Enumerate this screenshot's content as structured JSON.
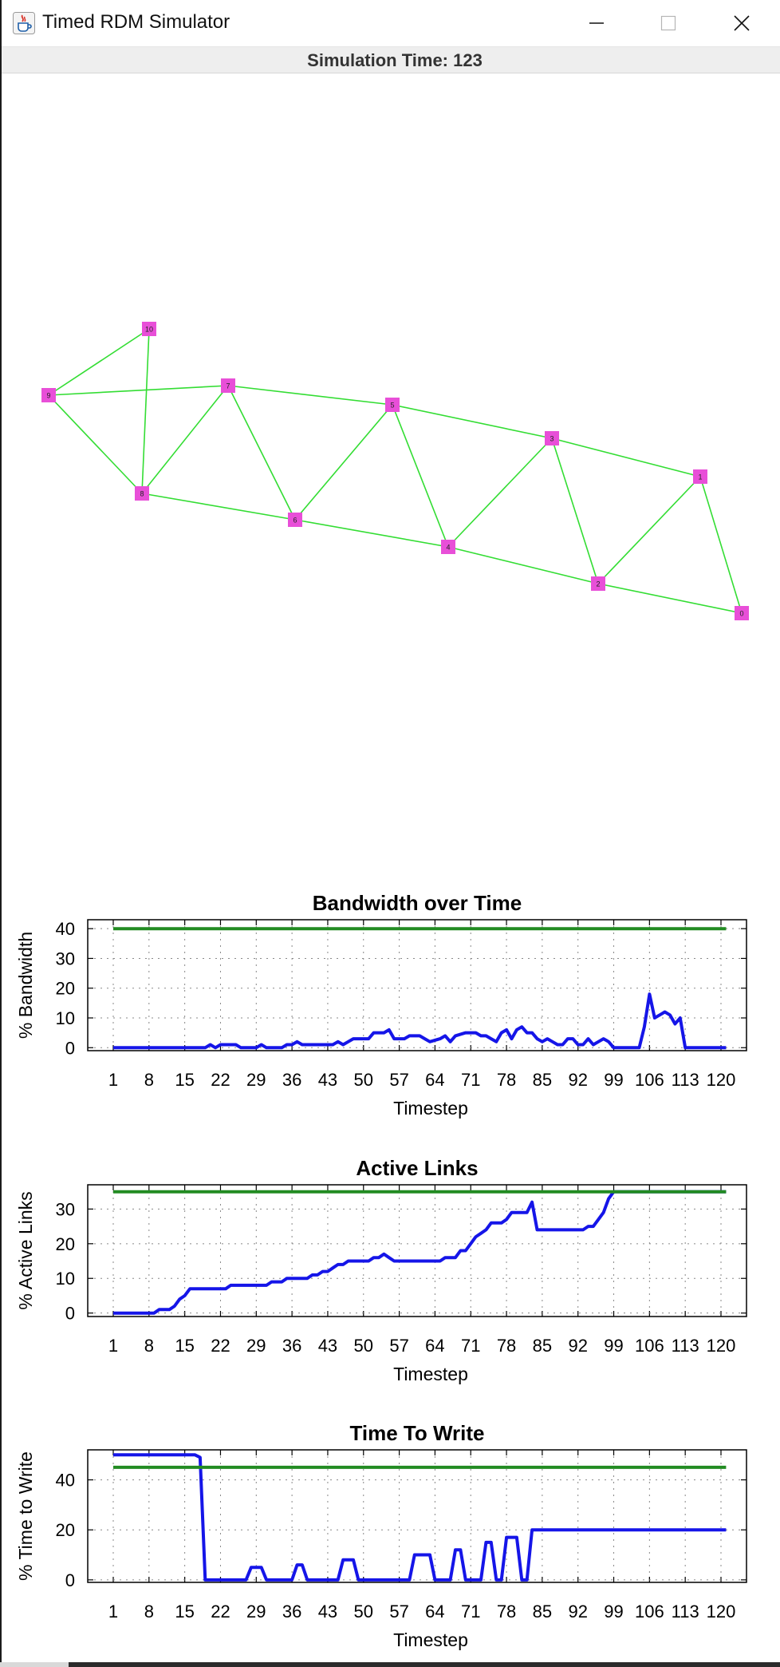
{
  "window": {
    "title": "Timed RDM Simulator",
    "icon": "java-coffee-cup-icon",
    "controls": [
      "minimize-icon",
      "maximize-icon",
      "close-icon"
    ]
  },
  "status": {
    "simulation_time_label": "Simulation Time: 123"
  },
  "topology": {
    "node_color": "#e84fd8",
    "edge_color": "#33dd33",
    "nodes": [
      {
        "id": "0",
        "label": "0"
      },
      {
        "id": "1",
        "label": "1"
      },
      {
        "id": "2",
        "label": "2"
      },
      {
        "id": "3",
        "label": "3"
      },
      {
        "id": "4",
        "label": "4"
      },
      {
        "id": "5",
        "label": "5"
      },
      {
        "id": "6",
        "label": "6"
      },
      {
        "id": "7",
        "label": "7"
      },
      {
        "id": "8",
        "label": "8"
      },
      {
        "id": "9",
        "label": "9"
      },
      {
        "id": "10",
        "label": "10"
      }
    ],
    "edges": [
      [
        "9",
        "10"
      ],
      [
        "9",
        "7"
      ],
      [
        "9",
        "8"
      ],
      [
        "10",
        "8"
      ],
      [
        "8",
        "7"
      ],
      [
        "8",
        "6"
      ],
      [
        "7",
        "6"
      ],
      [
        "7",
        "5"
      ],
      [
        "6",
        "5"
      ],
      [
        "6",
        "4"
      ],
      [
        "5",
        "4"
      ],
      [
        "5",
        "3"
      ],
      [
        "4",
        "3"
      ],
      [
        "4",
        "2"
      ],
      [
        "3",
        "2"
      ],
      [
        "3",
        "1"
      ],
      [
        "2",
        "1"
      ],
      [
        "2",
        "0"
      ],
      [
        "1",
        "0"
      ]
    ]
  },
  "chart_data": [
    {
      "type": "line",
      "title": "Bandwidth over Time",
      "xlabel": "Timestep",
      "ylabel": "% Bandwidth",
      "xticks": [
        "1",
        "8",
        "15",
        "22",
        "29",
        "36",
        "43",
        "50",
        "57",
        "64",
        "71",
        "78",
        "85",
        "92",
        "99",
        "106",
        "113",
        "120"
      ],
      "yticks": [
        "0",
        "10",
        "20",
        "30",
        "40"
      ],
      "xlim": [
        1,
        120
      ],
      "ylim": [
        -1,
        43
      ],
      "grid": true,
      "series": [
        {
          "color": "#1515e8",
          "points": [
            [
              1,
              0
            ],
            [
              19,
              0
            ],
            [
              20,
              1
            ],
            [
              21,
              0
            ],
            [
              22,
              1
            ],
            [
              25,
              1
            ],
            [
              26,
              0
            ],
            [
              29,
              0
            ],
            [
              30,
              1
            ],
            [
              31,
              0
            ],
            [
              34,
              0
            ],
            [
              35,
              1
            ],
            [
              36,
              1
            ],
            [
              37,
              2
            ],
            [
              38,
              1
            ],
            [
              44,
              1
            ],
            [
              45,
              2
            ],
            [
              46,
              1
            ],
            [
              47,
              2
            ],
            [
              48,
              3
            ],
            [
              51,
              3
            ],
            [
              52,
              5
            ],
            [
              54,
              5
            ],
            [
              55,
              6
            ],
            [
              56,
              3
            ],
            [
              58,
              3
            ],
            [
              59,
              4
            ],
            [
              61,
              4
            ],
            [
              62,
              3
            ],
            [
              63,
              2
            ],
            [
              65,
              3
            ],
            [
              66,
              4
            ],
            [
              67,
              2
            ],
            [
              68,
              4
            ],
            [
              70,
              5
            ],
            [
              72,
              5
            ],
            [
              73,
              4
            ],
            [
              74,
              4
            ],
            [
              75,
              3
            ],
            [
              76,
              2
            ],
            [
              77,
              5
            ],
            [
              78,
              6
            ],
            [
              79,
              3
            ],
            [
              80,
              6
            ],
            [
              81,
              7
            ],
            [
              82,
              5
            ],
            [
              83,
              5
            ],
            [
              84,
              3
            ],
            [
              85,
              2
            ],
            [
              86,
              3
            ],
            [
              87,
              2
            ],
            [
              88,
              1
            ],
            [
              89,
              1
            ],
            [
              90,
              3
            ],
            [
              91,
              3
            ],
            [
              92,
              1
            ],
            [
              93,
              1
            ],
            [
              94,
              3
            ],
            [
              95,
              1
            ],
            [
              96,
              2
            ],
            [
              97,
              3
            ],
            [
              98,
              2
            ],
            [
              99,
              0
            ],
            [
              104,
              0
            ],
            [
              105,
              7
            ],
            [
              106,
              18
            ],
            [
              107,
              10
            ],
            [
              108,
              11
            ],
            [
              109,
              12
            ],
            [
              110,
              11
            ],
            [
              111,
              8
            ],
            [
              112,
              10
            ],
            [
              113,
              0
            ],
            [
              121,
              0
            ]
          ]
        },
        {
          "color": "#228b22",
          "points": [
            [
              1,
              40
            ],
            [
              121,
              40
            ]
          ]
        }
      ]
    },
    {
      "type": "line",
      "title": "Active Links",
      "xlabel": "Timestep",
      "ylabel": "% Active Links",
      "xticks": [
        "1",
        "8",
        "15",
        "22",
        "29",
        "36",
        "43",
        "50",
        "57",
        "64",
        "71",
        "78",
        "85",
        "92",
        "99",
        "106",
        "113",
        "120"
      ],
      "yticks": [
        "0",
        "10",
        "20",
        "30"
      ],
      "xlim": [
        1,
        120
      ],
      "ylim": [
        -1,
        37
      ],
      "grid": true,
      "series": [
        {
          "color": "#1515e8",
          "points": [
            [
              1,
              0
            ],
            [
              9,
              0
            ],
            [
              10,
              1
            ],
            [
              12,
              1
            ],
            [
              13,
              2
            ],
            [
              14,
              4
            ],
            [
              15,
              5
            ],
            [
              16,
              7
            ],
            [
              23,
              7
            ],
            [
              24,
              8
            ],
            [
              31,
              8
            ],
            [
              32,
              9
            ],
            [
              34,
              9
            ],
            [
              35,
              10
            ],
            [
              39,
              10
            ],
            [
              40,
              11
            ],
            [
              41,
              11
            ],
            [
              42,
              12
            ],
            [
              43,
              12
            ],
            [
              44,
              13
            ],
            [
              45,
              14
            ],
            [
              46,
              14
            ],
            [
              47,
              15
            ],
            [
              51,
              15
            ],
            [
              52,
              16
            ],
            [
              53,
              16
            ],
            [
              54,
              17
            ],
            [
              55,
              16
            ],
            [
              56,
              15
            ],
            [
              65,
              15
            ],
            [
              66,
              16
            ],
            [
              68,
              16
            ],
            [
              69,
              18
            ],
            [
              70,
              18
            ],
            [
              71,
              20
            ],
            [
              72,
              22
            ],
            [
              73,
              23
            ],
            [
              74,
              24
            ],
            [
              75,
              26
            ],
            [
              77,
              26
            ],
            [
              78,
              27
            ],
            [
              79,
              29
            ],
            [
              82,
              29
            ],
            [
              83,
              32
            ],
            [
              84,
              24
            ],
            [
              93,
              24
            ],
            [
              94,
              25
            ],
            [
              95,
              25
            ],
            [
              96,
              27
            ],
            [
              97,
              29
            ],
            [
              98,
              33
            ],
            [
              99,
              35
            ],
            [
              121,
              35
            ]
          ]
        },
        {
          "color": "#228b22",
          "points": [
            [
              1,
              35
            ],
            [
              121,
              35
            ]
          ]
        }
      ]
    },
    {
      "type": "line",
      "title": "Time To Write",
      "xlabel": "Timestep",
      "ylabel": "% Time to Write",
      "xticks": [
        "1",
        "8",
        "15",
        "22",
        "29",
        "36",
        "43",
        "50",
        "57",
        "64",
        "71",
        "78",
        "85",
        "92",
        "99",
        "106",
        "113",
        "120"
      ],
      "yticks": [
        "0",
        "20",
        "40"
      ],
      "xlim": [
        1,
        120
      ],
      "ylim": [
        -1,
        52
      ],
      "grid": true,
      "series": [
        {
          "color": "#1515e8",
          "points": [
            [
              1,
              50
            ],
            [
              17,
              50
            ],
            [
              18,
              49
            ],
            [
              19,
              0
            ],
            [
              27,
              0
            ],
            [
              28,
              5
            ],
            [
              30,
              5
            ],
            [
              31,
              0
            ],
            [
              36,
              0
            ],
            [
              37,
              6
            ],
            [
              38,
              6
            ],
            [
              39,
              0
            ],
            [
              45,
              0
            ],
            [
              46,
              8
            ],
            [
              48,
              8
            ],
            [
              49,
              0
            ],
            [
              59,
              0
            ],
            [
              60,
              10
            ],
            [
              63,
              10
            ],
            [
              64,
              0
            ],
            [
              67,
              0
            ],
            [
              68,
              12
            ],
            [
              69,
              12
            ],
            [
              70,
              0
            ],
            [
              73,
              0
            ],
            [
              74,
              15
            ],
            [
              75,
              15
            ],
            [
              76,
              0
            ],
            [
              77,
              0
            ],
            [
              78,
              17
            ],
            [
              80,
              17
            ],
            [
              81,
              0
            ],
            [
              82,
              0
            ],
            [
              83,
              20
            ],
            [
              121,
              20
            ]
          ]
        },
        {
          "color": "#228b22",
          "points": [
            [
              1,
              45
            ],
            [
              121,
              45
            ]
          ]
        }
      ]
    }
  ]
}
